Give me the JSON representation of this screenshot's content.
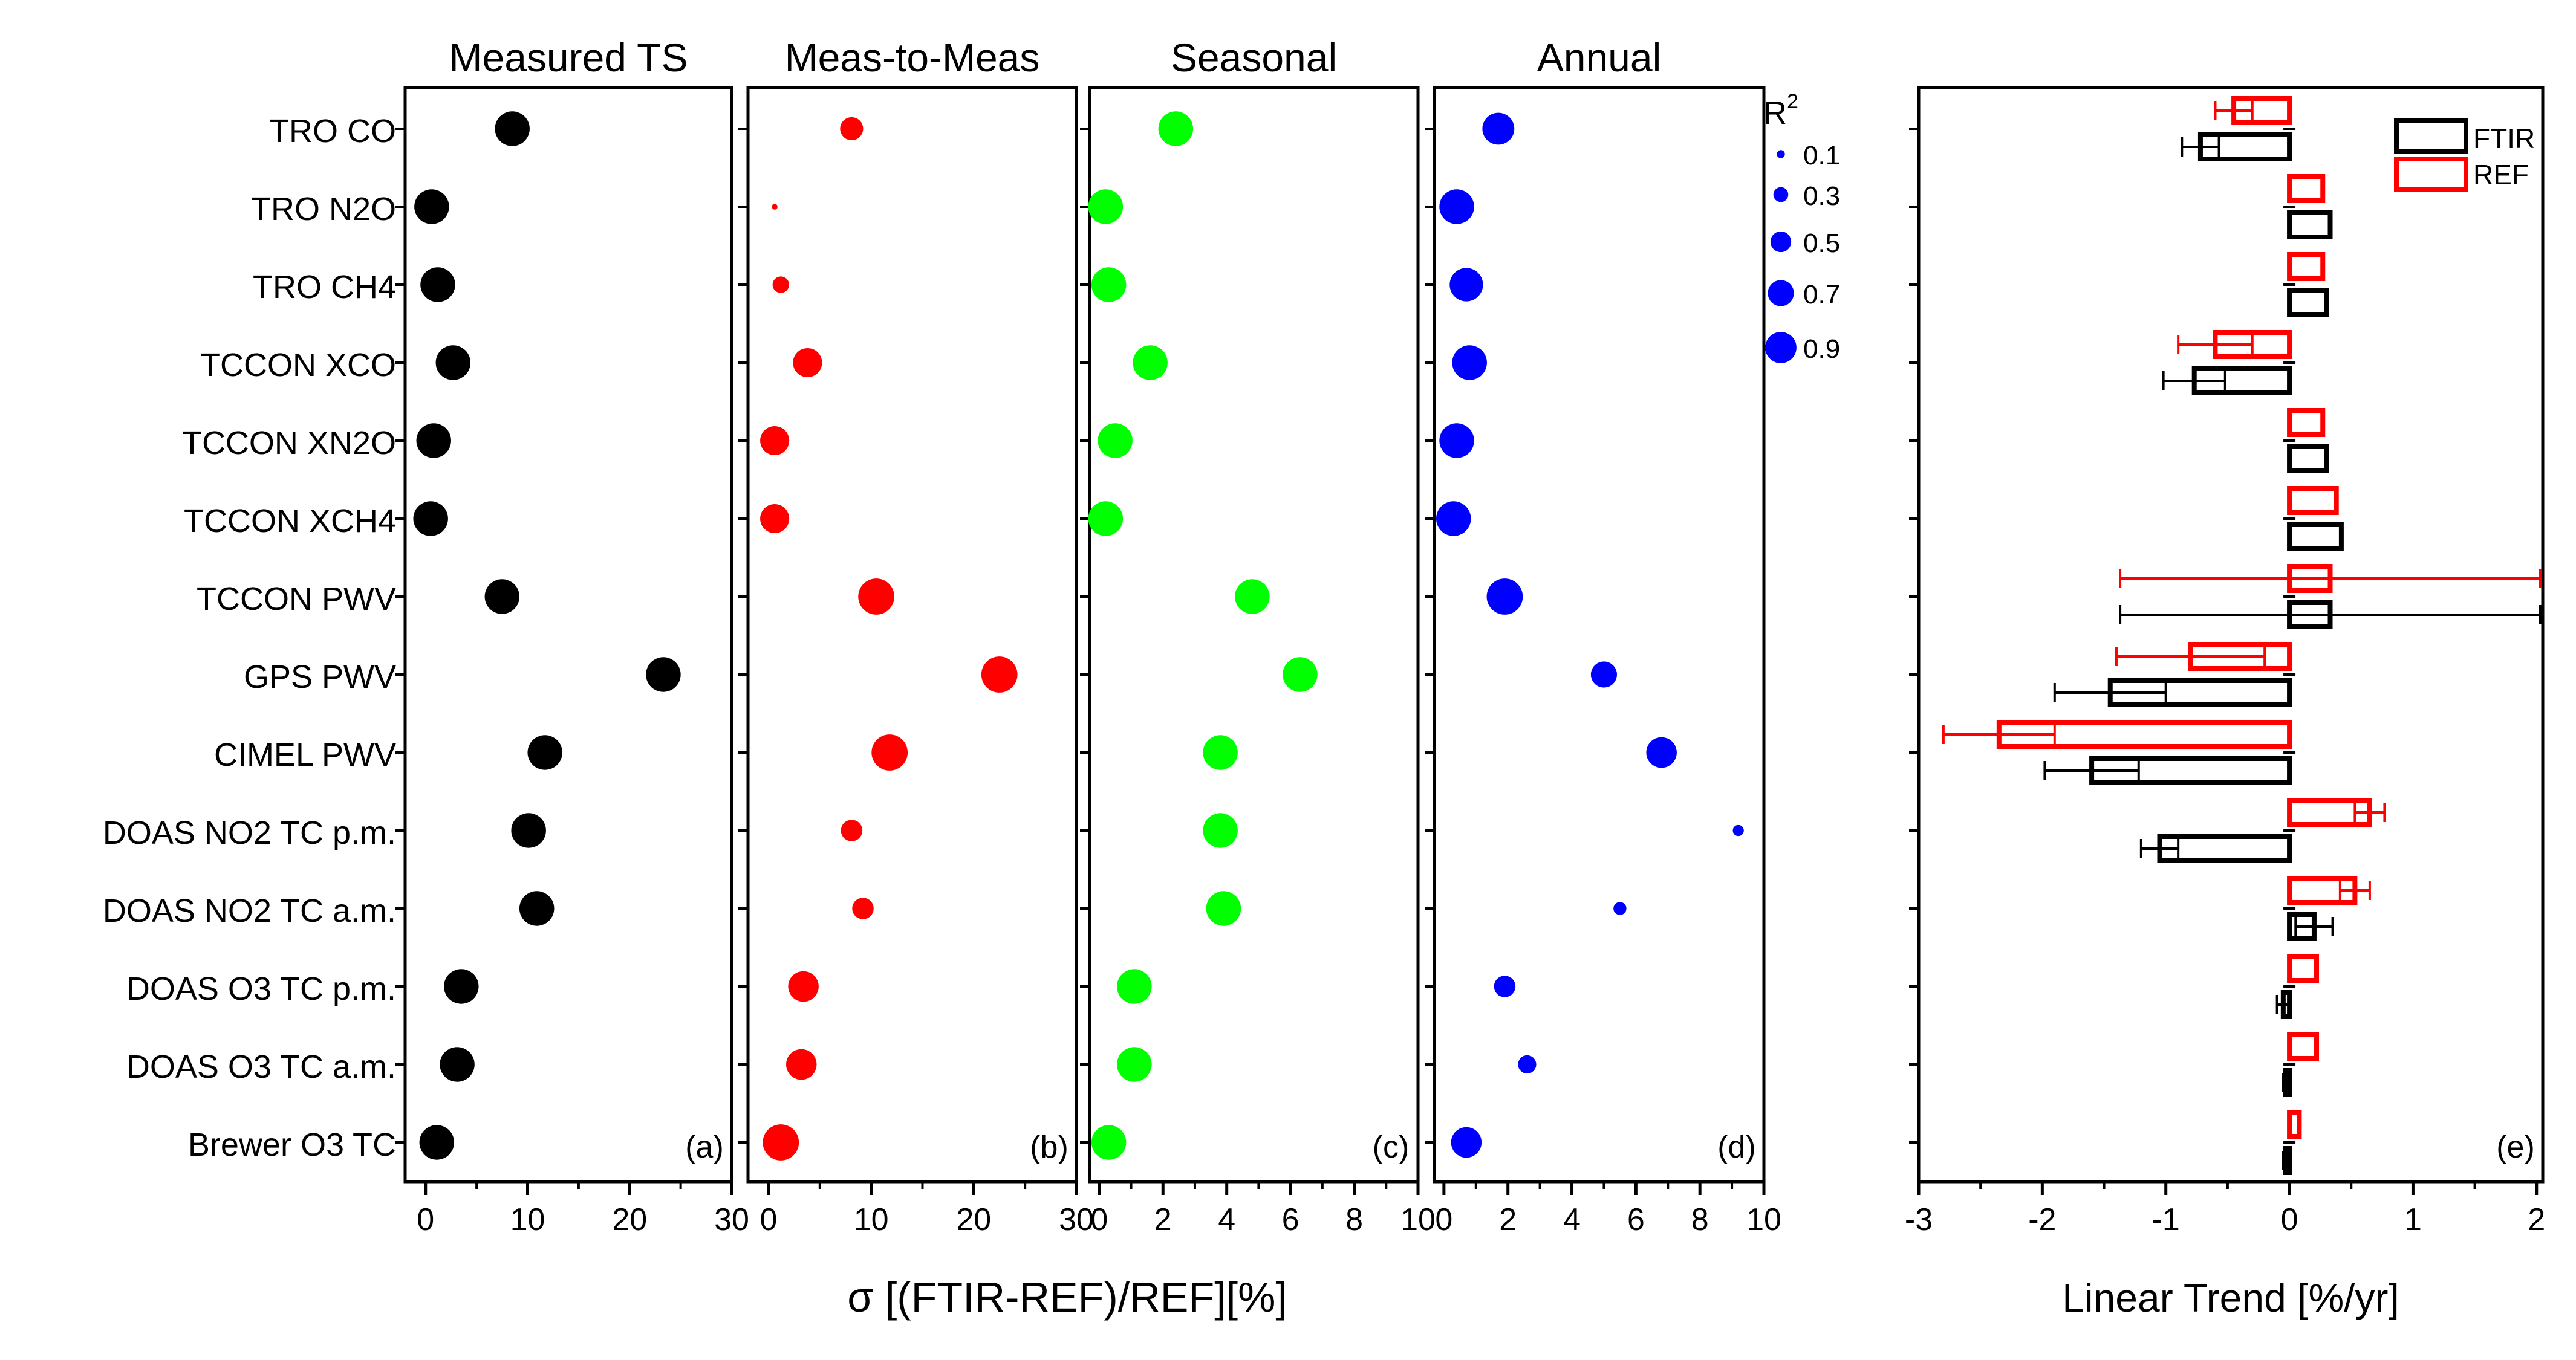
{
  "chart_data": [
    {
      "panel": "a",
      "type": "scatter",
      "title": "Measured TS",
      "panel_label": "(a)",
      "color": "#000000",
      "xlim": [
        -2,
        30
      ],
      "xticks": [
        0,
        10,
        20,
        30
      ],
      "categories": [
        "TRO CO",
        "TRO N2O",
        "TRO CH4",
        "TCCON XCO",
        "TCCON XN2O",
        "TCCON XCH4",
        "TCCON PWV",
        "GPS PWV",
        "CIMEL PWV",
        "DOAS NO2 TC p.m.",
        "DOAS NO2 TC a.m.",
        "DOAS O3 TC p.m.",
        "DOAS O3 TC a.m.",
        "Brewer O3 TC"
      ],
      "values": [
        8.5,
        0.6,
        1.2,
        2.7,
        0.8,
        0.5,
        7.5,
        23.3,
        11.7,
        10.1,
        10.9,
        3.5,
        3.1,
        1.1
      ],
      "r2": [
        0.9,
        0.9,
        0.9,
        0.9,
        0.9,
        0.9,
        0.9,
        0.9,
        0.9,
        0.9,
        0.9,
        0.9,
        0.9,
        0.9
      ]
    },
    {
      "panel": "b",
      "type": "scatter",
      "title": "Meas-to-Meas",
      "panel_label": "(b)",
      "color": "#ff0000",
      "xlim": [
        -2,
        30
      ],
      "xticks": [
        0,
        10,
        20,
        30
      ],
      "categories": [
        "TRO CO",
        "TRO N2O",
        "TRO CH4",
        "TCCON XCO",
        "TCCON XN2O",
        "TCCON XCH4",
        "TCCON PWV",
        "GPS PWV",
        "CIMEL PWV",
        "DOAS NO2 TC p.m.",
        "DOAS NO2 TC a.m.",
        "DOAS O3 TC p.m.",
        "DOAS O3 TC a.m.",
        "Brewer O3 TC"
      ],
      "values": [
        8.1,
        0.6,
        1.2,
        3.8,
        0.6,
        0.6,
        10.5,
        22.5,
        11.8,
        8.1,
        9.2,
        3.4,
        3.2,
        1.2
      ],
      "r2": [
        0.5,
        0.03,
        0.3,
        0.7,
        0.7,
        0.7,
        0.95,
        0.95,
        0.95,
        0.45,
        0.45,
        0.75,
        0.75,
        0.95
      ]
    },
    {
      "panel": "c",
      "type": "scatter",
      "title": "Seasonal",
      "panel_label": "(c)",
      "color": "#00ff00",
      "xlim": [
        -0.3,
        10
      ],
      "xticks": [
        0,
        2,
        4,
        6,
        8,
        10
      ],
      "categories": [
        "TRO CO",
        "TRO N2O",
        "TRO CH4",
        "TCCON XCO",
        "TCCON XN2O",
        "TCCON XCH4",
        "TCCON PWV",
        "GPS PWV",
        "CIMEL PWV",
        "DOAS NO2 TC p.m.",
        "DOAS NO2 TC a.m.",
        "DOAS O3 TC p.m.",
        "DOAS O3 TC a.m.",
        "Brewer O3 TC"
      ],
      "values": [
        2.4,
        0.2,
        0.3,
        1.6,
        0.5,
        0.2,
        4.8,
        6.3,
        3.8,
        3.8,
        3.9,
        1.1,
        1.1,
        0.3
      ],
      "r2": [
        0.9,
        0.9,
        0.9,
        0.9,
        0.9,
        0.9,
        0.9,
        0.9,
        0.9,
        0.9,
        0.9,
        0.9,
        0.9,
        0.9
      ]
    },
    {
      "panel": "d",
      "type": "scatter",
      "title": "Annual",
      "panel_label": "(d)",
      "color": "#0000ff",
      "xlim": [
        -0.3,
        10
      ],
      "xticks": [
        0,
        2,
        4,
        6,
        8,
        10
      ],
      "categories": [
        "TRO CO",
        "TRO N2O",
        "TRO CH4",
        "TCCON XCO",
        "TCCON XN2O",
        "TCCON XCH4",
        "TCCON PWV",
        "GPS PWV",
        "CIMEL PWV",
        "DOAS NO2 TC p.m.",
        "DOAS NO2 TC a.m.",
        "DOAS O3 TC p.m.",
        "DOAS O3 TC a.m.",
        "Brewer O3 TC"
      ],
      "values": [
        1.7,
        0.4,
        0.7,
        0.8,
        0.4,
        0.3,
        1.9,
        5.0,
        6.8,
        9.2,
        5.5,
        1.9,
        2.6,
        0.7
      ],
      "r2": [
        0.8,
        0.9,
        0.85,
        0.9,
        0.9,
        0.9,
        0.95,
        0.6,
        0.75,
        0.15,
        0.2,
        0.45,
        0.35,
        0.75
      ]
    },
    {
      "panel": "e",
      "type": "bar",
      "orientation": "horizontal",
      "panel_label": "(e)",
      "xlabel": "Linear Trend [%/yr]",
      "xlim": [
        -3,
        2.05
      ],
      "xticks": [
        -3,
        -2,
        -1,
        0,
        1,
        2
      ],
      "categories": [
        "TRO CO",
        "TRO N2O",
        "TRO CH4",
        "TCCON XCO",
        "TCCON XN2O",
        "TCCON XCH4",
        "TCCON PWV",
        "GPS PWV",
        "CIMEL PWV",
        "DOAS NO2 TC p.m.",
        "DOAS NO2 TC a.m.",
        "DOAS O3 TC p.m.",
        "DOAS O3 TC a.m.",
        "Brewer O3 TC"
      ],
      "series": [
        {
          "name": "FTIR",
          "color": "#000000",
          "values": [
            -0.72,
            0.33,
            0.3,
            -0.77,
            0.3,
            0.42,
            0.33,
            -1.45,
            -1.6,
            -1.05,
            0.2,
            -0.05,
            -0.03,
            -0.03
          ],
          "errors": [
            0.15,
            0.0,
            0.0,
            0.25,
            0.0,
            0.0,
            1.7,
            0.45,
            0.38,
            0.15,
            0.15,
            0.05,
            0.02,
            0.02
          ]
        },
        {
          "name": "REF",
          "color": "#ff0000",
          "values": [
            -0.45,
            0.27,
            0.27,
            -0.6,
            0.27,
            0.38,
            0.33,
            -0.8,
            -2.35,
            0.65,
            0.53,
            0.22,
            0.22,
            0.08
          ],
          "errors": [
            0.15,
            0.0,
            0.0,
            0.3,
            0.0,
            0.0,
            1.7,
            0.6,
            0.45,
            0.12,
            0.12,
            0.0,
            0.0,
            0.0
          ]
        }
      ]
    }
  ],
  "shared_xlabel": "σ [(FTIR-REF)/REF][%]",
  "size_legend": {
    "title_base": "R",
    "title_sup": "2",
    "entries": [
      "0.1",
      "0.3",
      "0.5",
      "0.7",
      "0.9"
    ],
    "values": [
      0.1,
      0.3,
      0.5,
      0.7,
      0.9
    ],
    "color": "#0000ff"
  }
}
